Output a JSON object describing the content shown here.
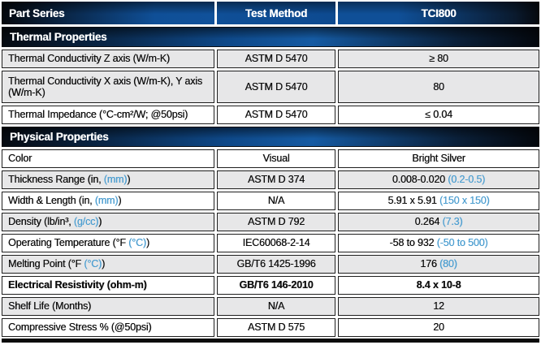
{
  "colors": {
    "header_blue": "#0f4f97",
    "accent_blue": "#4e9fd1",
    "row_gray": "#e7e7e8",
    "bottom_bar": "#0b0b0b"
  },
  "title_row": {
    "part_series": "Part Series",
    "test_method": "Test Method",
    "product": "TCI800"
  },
  "sections": [
    {
      "title": "Thermal Properties",
      "rows": [
        {
          "label_pre": "Thermal Conductivity Z axis (W/m-K)",
          "label_blue": "",
          "label_post": "",
          "method": "ASTM D 5470",
          "value_pre": "≥ 80",
          "value_blue": ""
        },
        {
          "label_pre": "Thermal Conductivity X axis (W/m-K), Y axis (W/m-K)",
          "label_blue": "",
          "label_post": "",
          "method": "ASTM D 5470",
          "value_pre": "80",
          "value_blue": ""
        },
        {
          "label_pre": "Thermal Impedance (°C-cm²/W; @50psi)",
          "label_blue": "",
          "label_post": "",
          "method": "ASTM D 5470",
          "value_pre": "≤ 0.04",
          "value_blue": ""
        }
      ]
    },
    {
      "title": "Physical Properties",
      "rows": [
        {
          "label_pre": "Color",
          "label_blue": "",
          "label_post": "",
          "method": "Visual",
          "value_pre": "Bright Silver",
          "value_blue": ""
        },
        {
          "label_pre": "Thickness Range (in, ",
          "label_blue": "(mm)",
          "label_post": ")",
          "method": "ASTM D 374",
          "value_pre": "0.008-0.020 ",
          "value_blue": "(0.2-0.5)"
        },
        {
          "label_pre": "Width & Length (in, ",
          "label_blue": "(mm)",
          "label_post": ")",
          "method": "N/A",
          "value_pre": "5.91 x 5.91 ",
          "value_blue": "(150 x 150)"
        },
        {
          "label_pre": "Density (lb/in³, ",
          "label_blue": "(g/cc)",
          "label_post": ")",
          "method": "ASTM D 792",
          "value_pre": "0.264 ",
          "value_blue": "(7.3)"
        },
        {
          "label_pre": "Operating Temperature (°F ",
          "label_blue": "(°C)",
          "label_post": ")",
          "method": "IEC60068-2-14",
          "value_pre": "-58 to 932 ",
          "value_blue": "(-50 to 500)"
        },
        {
          "label_pre": "Melting Point (°F ",
          "label_blue": "(°C)",
          "label_post": ")",
          "method": "GB/T6 1425-1996",
          "value_pre": "176 ",
          "value_blue": "(80)"
        },
        {
          "label_pre": "Electrical Resistivity (ohm-m)",
          "label_blue": "",
          "label_post": "",
          "method": "GB/T6 146-2010",
          "value_pre": "8.4 x 10-8",
          "value_blue": ""
        },
        {
          "label_pre": "Shelf Life (Months)",
          "label_blue": "",
          "label_post": "",
          "method": "N/A",
          "value_pre": "12",
          "value_blue": ""
        },
        {
          "label_pre": "Compressive Stress % (@50psi)",
          "label_blue": "",
          "label_post": "",
          "method": "ASTM D 575",
          "value_pre": "20",
          "value_blue": ""
        }
      ]
    }
  ]
}
